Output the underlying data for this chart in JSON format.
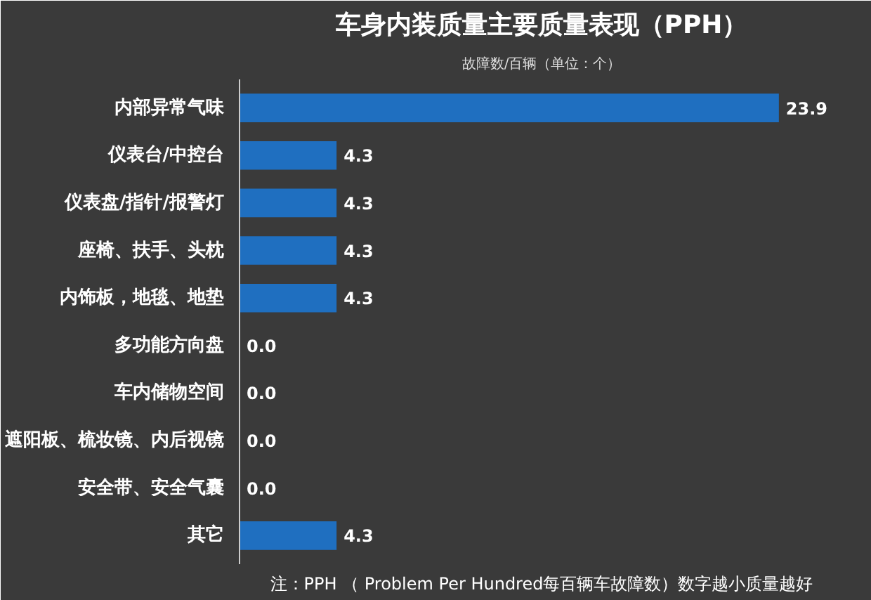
{
  "chart_data": {
    "type": "bar",
    "orientation": "horizontal",
    "title": "车身内装质量主要质量表现（PPH）",
    "subtitle": "故障数/百辆（单位：个）",
    "categories": [
      "内部异常气味",
      "仪表台/中控台",
      "仪表盘/指针/报警灯",
      "座椅、扶手、头枕",
      "内饰板，地毯、地垫",
      "多功能方向盘",
      "车内储物空间",
      "遮阳板、梳妆镜、内后视镜",
      "安全带、安全气囊",
      "其它"
    ],
    "values": [
      23.9,
      4.3,
      4.3,
      4.3,
      4.3,
      0.0,
      0.0,
      0.0,
      0.0,
      4.3
    ],
    "value_labels": [
      "23.9",
      "4.3",
      "4.3",
      "4.3",
      "4.3",
      "0.0",
      "0.0",
      "0.0",
      "0.0",
      "4.3"
    ],
    "color": "#1f6fc0",
    "grid": false,
    "annotations": [
      "注：PPH （ Problem Per Hundred每百辆车故障数）数字越小质量越好"
    ]
  }
}
